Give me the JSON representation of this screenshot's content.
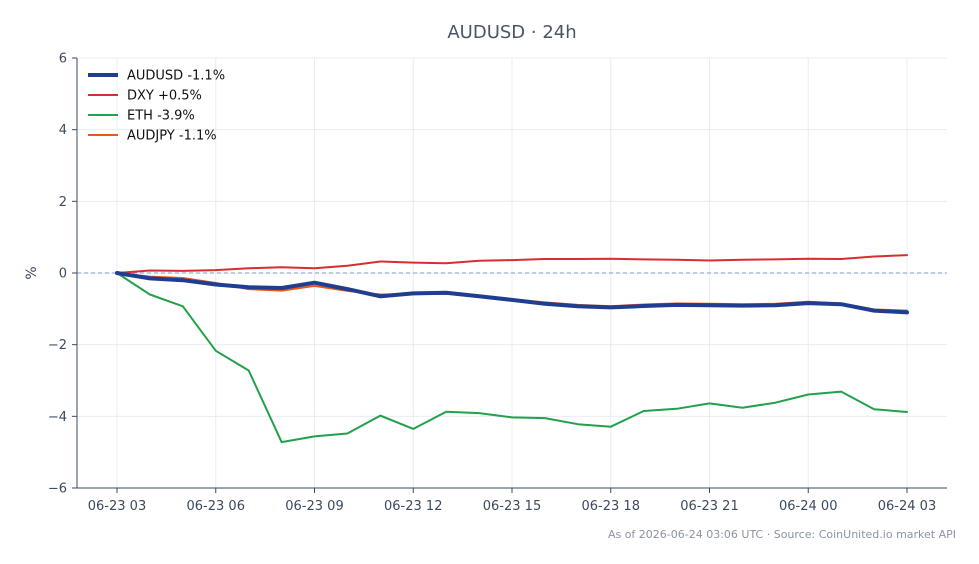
{
  "chart_data": {
    "type": "line",
    "title": "AUDUSD · 24h",
    "ylabel": "%",
    "xlabel": "",
    "ylim": [
      -6,
      6
    ],
    "yticks": [
      -6,
      -4,
      -2,
      0,
      2,
      4,
      6
    ],
    "ytick_labels": [
      "−6",
      "−4",
      "−2",
      "0",
      "2",
      "4",
      "6"
    ],
    "xlim": [
      0,
      24
    ],
    "xticks": [
      0,
      3,
      6,
      9,
      12,
      15,
      18,
      21,
      24
    ],
    "xtick_labels": [
      "06-23 03",
      "06-23 06",
      "06-23 09",
      "06-23 12",
      "06-23 15",
      "06-23 18",
      "06-23 21",
      "06-24 00",
      "06-24 03"
    ],
    "x": [
      0,
      1,
      2,
      3,
      4,
      5,
      6,
      7,
      8,
      9,
      10,
      11,
      12,
      13,
      14,
      15,
      16,
      17,
      18,
      19,
      20,
      21,
      22,
      23,
      24
    ],
    "grid": true,
    "zero_line": true,
    "legend_position": "top-left",
    "series": [
      {
        "name": "AUDUSD -1.1%",
        "color": "#1f3e91",
        "width": 4,
        "values": [
          0.0,
          -0.15,
          -0.2,
          -0.32,
          -0.4,
          -0.42,
          -0.27,
          -0.45,
          -0.65,
          -0.57,
          -0.55,
          -0.65,
          -0.75,
          -0.86,
          -0.93,
          -0.96,
          -0.92,
          -0.89,
          -0.9,
          -0.91,
          -0.9,
          -0.84,
          -0.87,
          -1.05,
          -1.1
        ]
      },
      {
        "name": "DXY +0.5%",
        "color": "#d62f2f",
        "width": 2,
        "values": [
          0.0,
          0.07,
          0.06,
          0.08,
          0.13,
          0.16,
          0.13,
          0.2,
          0.32,
          0.29,
          0.27,
          0.34,
          0.36,
          0.39,
          0.39,
          0.4,
          0.38,
          0.37,
          0.35,
          0.37,
          0.38,
          0.4,
          0.39,
          0.46,
          0.5
        ]
      },
      {
        "name": "ETH -3.9%",
        "color": "#22a04b",
        "width": 2,
        "values": [
          0.0,
          -0.6,
          -0.93,
          -2.17,
          -2.72,
          -4.72,
          -4.56,
          -4.48,
          -3.98,
          -4.35,
          -3.87,
          -3.91,
          -4.03,
          -4.05,
          -4.22,
          -4.29,
          -3.85,
          -3.79,
          -3.64,
          -3.76,
          -3.62,
          -3.39,
          -3.31,
          -3.8,
          -3.88
        ]
      },
      {
        "name": "AUDJPY -1.1%",
        "color": "#e8571c",
        "width": 2,
        "values": [
          0.0,
          -0.1,
          -0.14,
          -0.28,
          -0.45,
          -0.49,
          -0.36,
          -0.5,
          -0.6,
          -0.59,
          -0.58,
          -0.67,
          -0.73,
          -0.82,
          -0.89,
          -0.93,
          -0.88,
          -0.85,
          -0.86,
          -0.87,
          -0.86,
          -0.8,
          -0.85,
          -1.02,
          -1.05
        ]
      }
    ]
  },
  "footer": {
    "note": "As of 2026-06-24 03:06 UTC · Source: CoinUnited.io market API"
  },
  "colors": {
    "axis": "#3b4a5e",
    "grid": "#e8ecf1",
    "zero_line": "#7f9bc4"
  }
}
